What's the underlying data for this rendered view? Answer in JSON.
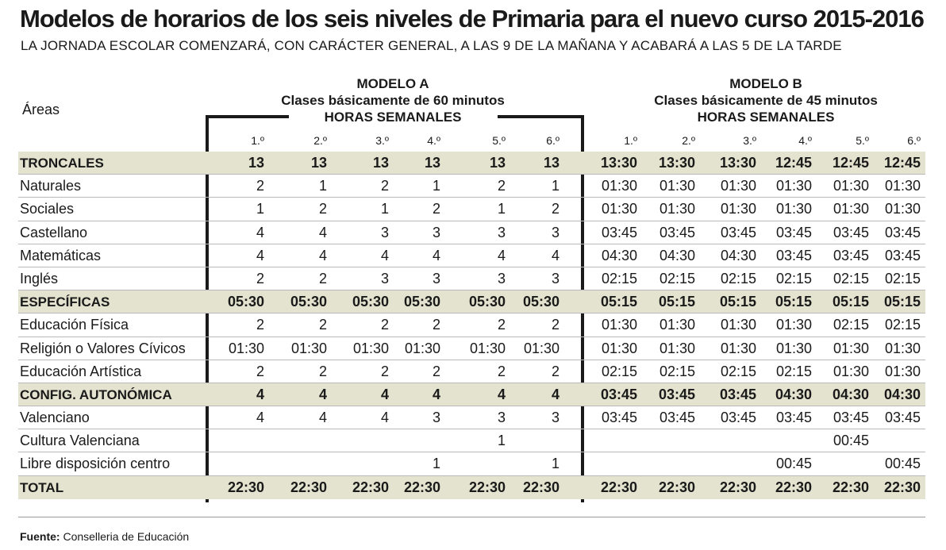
{
  "title": "Modelos de horarios de los seis niveles de Primaria para el nuevo curso 2015-2016",
  "subtitle": "LA JORNADA ESCOLAR COMENZARÁ, CON CARÁCTER  GENERAL, A LAS 9 DE LA MAÑANA Y ACABARÁ A LAS 5 DE LA TARDE",
  "areas_label": "Áreas",
  "model_a": {
    "line1": "MODELO A",
    "line2": "Clases básicamente de 60 minutos",
    "line3": "HORAS SEMANALES"
  },
  "model_b": {
    "line1": "MODELO B",
    "line2": "Clases básicamente de 45 minutos",
    "line3": "HORAS SEMANALES"
  },
  "levels": [
    "1.º",
    "2.º",
    "3.º",
    "4.º",
    "5.º",
    "6.º"
  ],
  "rows": [
    {
      "label": "TRONCALES",
      "type": "hl",
      "a": [
        "13",
        "13",
        "13",
        "13",
        "13",
        "13"
      ],
      "b": [
        "13:30",
        "13:30",
        "13:30",
        "12:45",
        "12:45",
        "12:45"
      ]
    },
    {
      "label": "Naturales",
      "type": "normal",
      "a": [
        "2",
        "1",
        "2",
        "1",
        "2",
        "1"
      ],
      "b": [
        "01:30",
        "01:30",
        "01:30",
        "01:30",
        "01:30",
        "01:30"
      ]
    },
    {
      "label": "Sociales",
      "type": "normal",
      "a": [
        "1",
        "2",
        "1",
        "2",
        "1",
        "2"
      ],
      "b": [
        "01:30",
        "01:30",
        "01:30",
        "01:30",
        "01:30",
        "01:30"
      ]
    },
    {
      "label": "Castellano",
      "type": "normal",
      "a": [
        "4",
        "4",
        "3",
        "3",
        "3",
        "3"
      ],
      "b": [
        "03:45",
        "03:45",
        "03:45",
        "03:45",
        "03:45",
        "03:45"
      ]
    },
    {
      "label": "Matemáticas",
      "type": "normal",
      "a": [
        "4",
        "4",
        "4",
        "4",
        "4",
        "4"
      ],
      "b": [
        "04:30",
        "04:30",
        "04:30",
        "03:45",
        "03:45",
        "03:45"
      ]
    },
    {
      "label": "Inglés",
      "type": "normal",
      "a": [
        "2",
        "2",
        "3",
        "3",
        "3",
        "3"
      ],
      "b": [
        "02:15",
        "02:15",
        "02:15",
        "02:15",
        "02:15",
        "02:15"
      ]
    },
    {
      "label": "ESPECÍFICAS",
      "type": "hl",
      "a": [
        "05:30",
        "05:30",
        "05:30",
        "05:30",
        "05:30",
        "05:30"
      ],
      "b": [
        "05:15",
        "05:15",
        "05:15",
        "05:15",
        "05:15",
        "05:15"
      ]
    },
    {
      "label": "Educación Física",
      "type": "normal",
      "a": [
        "2",
        "2",
        "2",
        "2",
        "2",
        "2"
      ],
      "b": [
        "01:30",
        "01:30",
        "01:30",
        "01:30",
        "02:15",
        "02:15"
      ]
    },
    {
      "label": "Religión o Valores Cívicos",
      "type": "normal",
      "a": [
        "01:30",
        "01:30",
        "01:30",
        "01:30",
        "01:30",
        "01:30"
      ],
      "b": [
        "01:30",
        "01:30",
        "01:30",
        "01:30",
        "01:30",
        "01:30"
      ]
    },
    {
      "label": "Educación Artística",
      "type": "normal",
      "a": [
        "2",
        "2",
        "2",
        "2",
        "2",
        "2"
      ],
      "b": [
        "02:15",
        "02:15",
        "02:15",
        "02:15",
        "01:30",
        "01:30"
      ]
    },
    {
      "label": "CONFIG. AUTONÓMICA",
      "type": "hl",
      "a": [
        "4",
        "4",
        "4",
        "4",
        "4",
        "4"
      ],
      "b": [
        "03:45",
        "03:45",
        "03:45",
        "04:30",
        "04:30",
        "04:30"
      ]
    },
    {
      "label": "Valenciano",
      "type": "normal",
      "a": [
        "4",
        "4",
        "4",
        "3",
        "3",
        "3"
      ],
      "b": [
        "03:45",
        "03:45",
        "03:45",
        "03:45",
        "03:45",
        "03:45"
      ]
    },
    {
      "label": "Cultura Valenciana",
      "type": "normal",
      "a": [
        "",
        "",
        "",
        "",
        "1",
        ""
      ],
      "b": [
        "",
        "",
        "",
        "",
        "00:45",
        ""
      ]
    },
    {
      "label": "Libre disposición centro",
      "type": "normal",
      "a": [
        "",
        "",
        "",
        "1",
        "",
        "1"
      ],
      "b": [
        "",
        "",
        "",
        "00:45",
        "",
        "00:45"
      ]
    },
    {
      "label": "TOTAL",
      "type": "total",
      "a": [
        "22:30",
        "22:30",
        "22:30",
        "22:30",
        "22:30",
        "22:30"
      ],
      "b": [
        "22:30",
        "22:30",
        "22:30",
        "22:30",
        "22:30",
        "22:30"
      ]
    }
  ],
  "source_label": "Fuente:",
  "source_text": " Conselleria de Educación"
}
